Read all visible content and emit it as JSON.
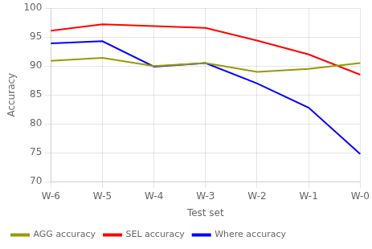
{
  "chart_data": {
    "type": "line",
    "categories": [
      "W-6",
      "W-5",
      "W-4",
      "W-3",
      "W-2",
      "W-1",
      "W-0"
    ],
    "series": [
      {
        "name": "AGG accuracy",
        "color": "#999900",
        "values": [
          90.9,
          91.4,
          90.0,
          90.5,
          89.0,
          89.5,
          90.5
        ]
      },
      {
        "name": "SEL accuracy",
        "color": "#ff0000",
        "values": [
          96.1,
          97.2,
          96.9,
          96.6,
          94.4,
          92.0,
          88.5
        ]
      },
      {
        "name": "Where accuracy",
        "color": "#0000ff",
        "values": [
          93.9,
          94.3,
          89.9,
          90.5,
          87.0,
          82.8,
          74.8
        ]
      }
    ],
    "xlabel": "Test set",
    "ylabel": "Accuracy",
    "ylim": [
      70,
      100
    ],
    "yticks": [
      70,
      75,
      80,
      85,
      90,
      95,
      100
    ],
    "grid": true,
    "legend": "lower left"
  }
}
